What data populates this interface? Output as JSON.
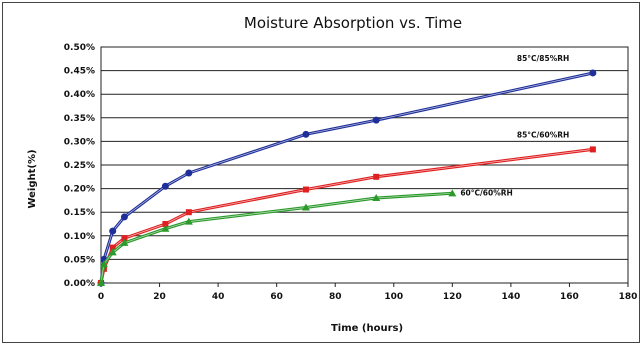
{
  "chart_data": {
    "type": "line",
    "title": "Moisture Absorption vs. Time",
    "xlabel": "Time (hours)",
    "ylabel": "Weight(%)",
    "xlim": [
      0,
      180
    ],
    "ylim": [
      0.0,
      0.5
    ],
    "x_ticks": [
      "0",
      "20",
      "40",
      "60",
      "80",
      "100",
      "120",
      "140",
      "160",
      "180"
    ],
    "y_ticks": [
      "0.00%",
      "0.05%",
      "0.10%",
      "0.15%",
      "0.20%",
      "0.25%",
      "0.30%",
      "0.35%",
      "0.40%",
      "0.45%",
      "0.50%"
    ],
    "grid": "horizontal",
    "series": [
      {
        "name": "85°C/85%RH",
        "color": "#1f2f9a",
        "x": [
          0,
          1,
          4,
          8,
          22,
          30,
          70,
          94,
          168
        ],
        "values": [
          0.0,
          0.05,
          0.11,
          0.14,
          0.205,
          0.233,
          0.315,
          0.345,
          0.445
        ]
      },
      {
        "name": "85°C/60%RH",
        "color": "#e02020",
        "x": [
          0,
          1,
          4,
          8,
          22,
          30,
          70,
          94,
          168
        ],
        "values": [
          0.0,
          0.03,
          0.075,
          0.095,
          0.125,
          0.15,
          0.198,
          0.225,
          0.283
        ]
      },
      {
        "name": "60°C/60%RH",
        "color": "#2a9a2a",
        "x": [
          0,
          1,
          4,
          8,
          22,
          30,
          70,
          94,
          120
        ],
        "values": [
          0.0,
          0.04,
          0.065,
          0.085,
          0.115,
          0.13,
          0.16,
          0.18,
          0.19
        ]
      }
    ]
  }
}
